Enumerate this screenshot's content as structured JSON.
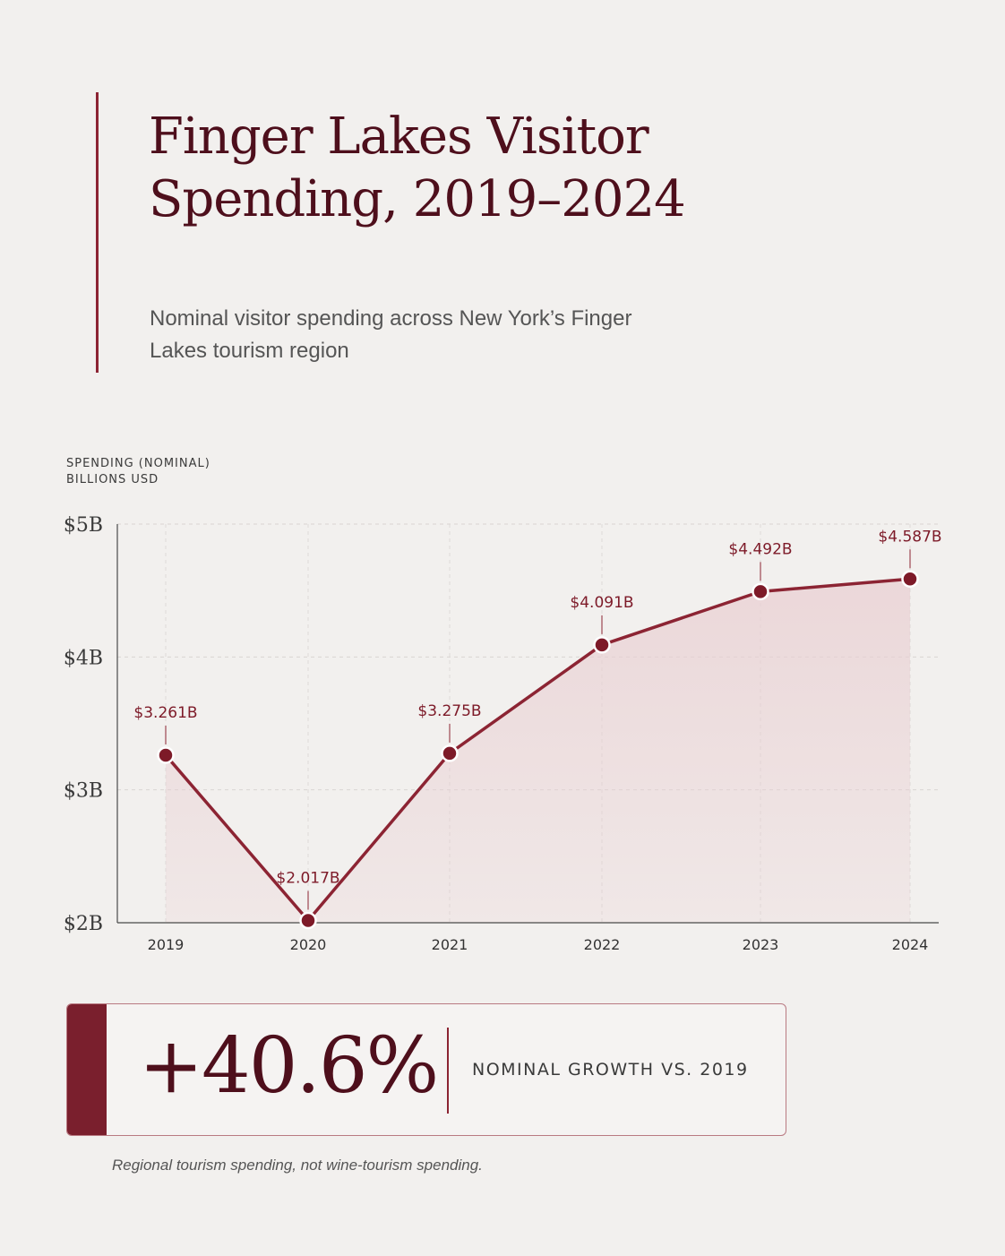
{
  "header": {
    "title": "Finger Lakes Visitor Spending, 2019–2024",
    "subtitle": "Nominal visitor spending across New York’s Finger Lakes tourism region"
  },
  "colors": {
    "accent": "#8c2433",
    "line": "#8c2433",
    "area": "#e9cfd2",
    "marker": "#7d1a28",
    "background": "#f2f0ee"
  },
  "chart_data": {
    "type": "line",
    "x": [
      "2019",
      "2020",
      "2021",
      "2022",
      "2023",
      "2024"
    ],
    "series": [
      {
        "values": [
          3.261,
          2.017,
          3.275,
          4.091,
          4.492,
          4.587
        ]
      }
    ],
    "data_labels": [
      "$3.261B",
      "$2.017B",
      "$3.275B",
      "$4.091B",
      "$4.492B",
      "$4.587B"
    ],
    "ylabel_lines": [
      "SPENDING (NOMINAL)",
      "BILLIONS USD"
    ],
    "yticks": [
      2,
      3,
      4,
      5
    ],
    "ytick_labels": [
      "$2B",
      "$3B",
      "$4B",
      "$5B"
    ],
    "ylim": [
      2,
      5
    ],
    "area_fill": true,
    "grid": "dashed"
  },
  "stat": {
    "value": "+40.6%",
    "label": "NOMINAL GROWTH VS. 2019"
  },
  "footnote": "Regional tourism spending, not wine-tourism spending."
}
